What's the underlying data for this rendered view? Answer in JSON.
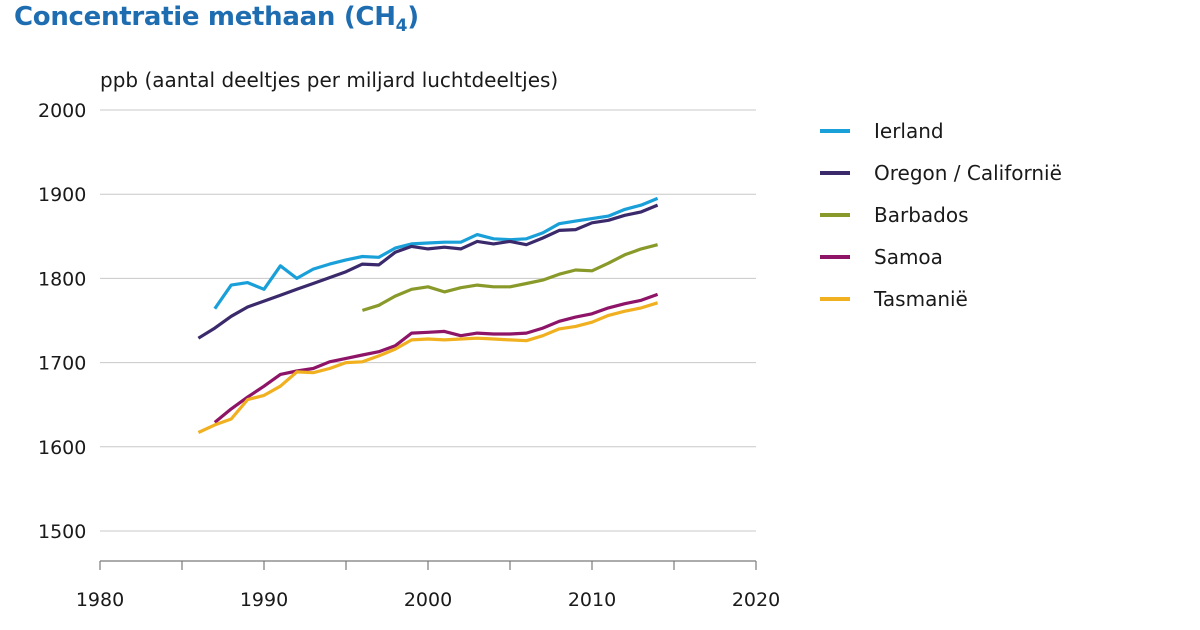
{
  "header": {
    "title_main": "Concentratie methaan (CH",
    "title_sub": "4",
    "title_close": ")"
  },
  "chart_data": {
    "type": "line",
    "title": "Concentratie methaan (CH4)",
    "ylabel": "ppb (aantal deeltjes per miljard luchtdeeltjes)",
    "xlabel": "",
    "xlim": [
      1980,
      2020
    ],
    "ylim": [
      1500,
      2000
    ],
    "x_ticks": [
      1980,
      1990,
      2000,
      2010,
      2020
    ],
    "y_ticks": [
      1500,
      1600,
      1700,
      1800,
      1900,
      2000
    ],
    "grid": "horizontal",
    "legend_position": "right",
    "series": [
      {
        "name": "Ierland",
        "color": "#1aa0d9",
        "x": [
          1987,
          1988,
          1989,
          1990,
          1991,
          1992,
          1993,
          1994,
          1995,
          1996,
          1997,
          1998,
          1999,
          2000,
          2001,
          2002,
          2003,
          2004,
          2005,
          2006,
          2007,
          2008,
          2009,
          2010,
          2011,
          2012,
          2013,
          2014
        ],
        "values": [
          1764,
          1792,
          1795,
          1787,
          1815,
          1800,
          1811,
          1817,
          1822,
          1826,
          1825,
          1836,
          1841,
          1842,
          1843,
          1843,
          1852,
          1847,
          1846,
          1847,
          1854,
          1865,
          1868,
          1871,
          1874,
          1882,
          1887,
          1895
        ]
      },
      {
        "name": "Oregon / Californië",
        "color": "#3b2a6b",
        "x": [
          1986,
          1987,
          1988,
          1989,
          1990,
          1991,
          1992,
          1993,
          1994,
          1995,
          1996,
          1997,
          1998,
          1999,
          2000,
          2001,
          2002,
          2003,
          2004,
          2005,
          2006,
          2007,
          2008,
          2009,
          2010,
          2011,
          2012,
          2013,
          2014
        ],
        "values": [
          1729,
          1741,
          1755,
          1766,
          1773,
          1780,
          1787,
          1794,
          1801,
          1808,
          1817,
          1816,
          1831,
          1838,
          1835,
          1837,
          1835,
          1844,
          1841,
          1844,
          1840,
          1848,
          1857,
          1858,
          1866,
          1869,
          1875,
          1879,
          1887
        ]
      },
      {
        "name": "Barbados",
        "color": "#8a9a2a",
        "x": [
          1996,
          1997,
          1998,
          1999,
          2000,
          2001,
          2002,
          2003,
          2004,
          2005,
          2006,
          2007,
          2008,
          2009,
          2010,
          2011,
          2012,
          2013,
          2014
        ],
        "values": [
          1762,
          1768,
          1779,
          1787,
          1790,
          1784,
          1789,
          1792,
          1790,
          1790,
          1794,
          1798,
          1805,
          1810,
          1809,
          1818,
          1828,
          1835,
          1840
        ]
      },
      {
        "name": "Samoa",
        "color": "#8e1468",
        "x": [
          1987,
          1988,
          1989,
          1990,
          1991,
          1992,
          1993,
          1994,
          1995,
          1996,
          1997,
          1998,
          1999,
          2000,
          2001,
          2002,
          2003,
          2004,
          2005,
          2006,
          2007,
          2008,
          2009,
          2010,
          2011,
          2012,
          2013,
          2014
        ],
        "values": [
          1629,
          1645,
          1659,
          1672,
          1686,
          1690,
          1693,
          1701,
          1705,
          1709,
          1713,
          1720,
          1735,
          1736,
          1737,
          1732,
          1735,
          1734,
          1734,
          1735,
          1741,
          1749,
          1754,
          1758,
          1765,
          1770,
          1774,
          1781
        ]
      },
      {
        "name": "Tasmanië",
        "color": "#f0b020",
        "x": [
          1986,
          1987,
          1988,
          1989,
          1990,
          1991,
          1992,
          1993,
          1994,
          1995,
          1996,
          1997,
          1998,
          1999,
          2000,
          2001,
          2002,
          2003,
          2004,
          2005,
          2006,
          2007,
          2008,
          2009,
          2010,
          2011,
          2012,
          2013,
          2014
        ],
        "values": [
          1617,
          1626,
          1633,
          1656,
          1661,
          1672,
          1689,
          1688,
          1693,
          1700,
          1701,
          1708,
          1716,
          1727,
          1728,
          1727,
          1728,
          1729,
          1728,
          1727,
          1726,
          1732,
          1740,
          1743,
          1748,
          1756,
          1761,
          1765,
          1771
        ]
      }
    ]
  }
}
